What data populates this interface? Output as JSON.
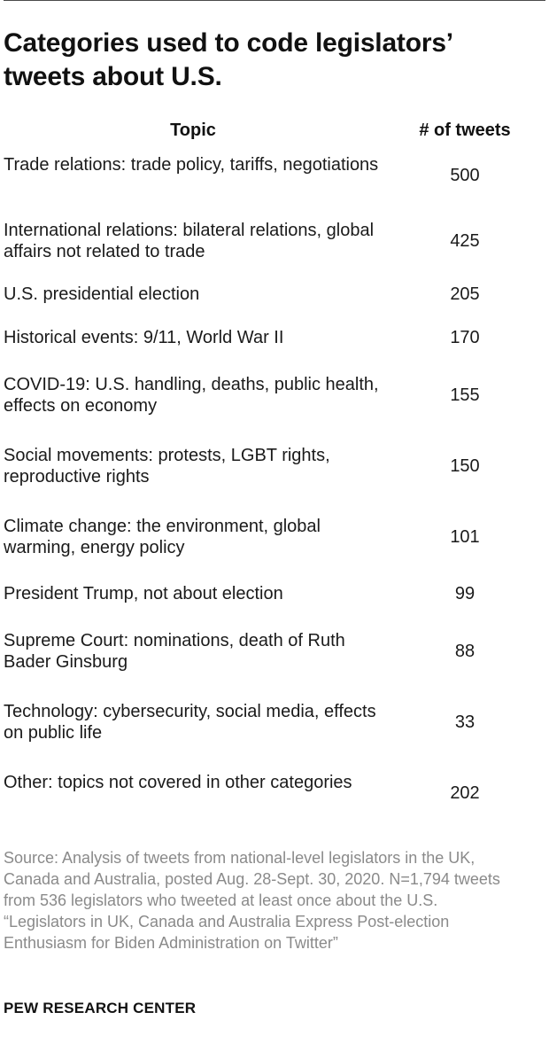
{
  "title": "Categories used to code legislators’ tweets about U.S.",
  "chart_data": {
    "type": "table",
    "title": "Categories used to code legislators’ tweets about U.S.",
    "columns": [
      "Topic",
      "# of tweets"
    ],
    "rows": [
      {
        "topic": "Trade relations: trade policy, tariffs, negotiations",
        "count": 500
      },
      {
        "topic": "International relations: bilateral relations, global affairs not related to trade",
        "count": 425
      },
      {
        "topic": "U.S. presidential election",
        "count": 205
      },
      {
        "topic": "Historical events: 9/11, World War II",
        "count": 170
      },
      {
        "topic": "COVID-19: U.S. handling, deaths, public health, effects on economy",
        "count": 155
      },
      {
        "topic": "Social movements: protests, LGBT rights, reproductive rights",
        "count": 150
      },
      {
        "topic": "Climate change: the environment, global warming, energy policy",
        "count": 101
      },
      {
        "topic": "President Trump, not about election",
        "count": 99
      },
      {
        "topic": "Supreme Court: nominations, death of Ruth Bader Ginsburg",
        "count": 88
      },
      {
        "topic": "Technology: cybersecurity, social media, effects on public life",
        "count": 33
      },
      {
        "topic": "Other: topics not covered in other categories",
        "count": 202
      }
    ]
  },
  "source": "Source: Analysis of tweets from national-level legislators in the UK, Canada and Australia, posted Aug. 28-Sept. 30, 2020. N=1,794 tweets from 536 legislators who tweeted at least once about the U.S.",
  "report_title": "“Legislators in UK, Canada and Australia Express Post-election Enthusiasm for Biden Administration on Twitter”",
  "footer": "PEW RESEARCH CENTER"
}
